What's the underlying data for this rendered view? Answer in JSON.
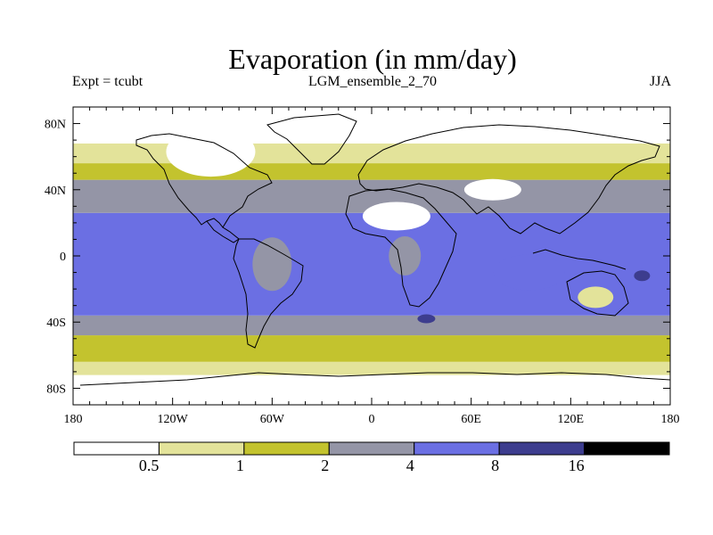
{
  "title": "Evaporation (in mm/day)",
  "experiment": "Expt = tcubt",
  "dataset": "LGM_ensemble_2_70",
  "season": "JJA",
  "lat_labels": [
    "80N",
    "40N",
    "0",
    "40S",
    "80S"
  ],
  "lon_labels": [
    "180",
    "120W",
    "60W",
    "0",
    "60E",
    "120E",
    "180"
  ],
  "colorbar": {
    "thresholds": [
      "0.5",
      "1",
      "2",
      "4",
      "8",
      "16"
    ],
    "colors": [
      "#ffffff",
      "#e3e39a",
      "#c3c32e",
      "#9495a6",
      "#6b6fe3",
      "#3d3d8e",
      "#000000"
    ]
  },
  "chart_data": {
    "type": "heatmap",
    "title": "Evaporation (in mm/day)",
    "variable": "Evaporation",
    "units": "mm/day",
    "season": "JJA",
    "x_range": [
      -180,
      180
    ],
    "y_range": [
      -90,
      90
    ],
    "levels": [
      0.5,
      1,
      2,
      4,
      8,
      16
    ],
    "zones": [
      {
        "name": "south-polar",
        "lat_min": -90,
        "lat_max": -72,
        "class": 0
      },
      {
        "name": "southern-ocean-edge",
        "lat_min": -72,
        "lat_max": -64,
        "class": 1
      },
      {
        "name": "southern-ocean",
        "lat_min": -64,
        "lat_max": -48,
        "class": 2
      },
      {
        "name": "southern-midlatitudes",
        "lat_min": -48,
        "lat_max": -36,
        "class": 3
      },
      {
        "name": "tropics",
        "lat_min": -36,
        "lat_max": 26,
        "class": 4
      },
      {
        "name": "northern-subtropics",
        "lat_min": 26,
        "lat_max": 46,
        "class": 3
      },
      {
        "name": "northern-midlatitudes",
        "lat_min": 46,
        "lat_max": 56,
        "class": 2
      },
      {
        "name": "northern-high",
        "lat_min": 56,
        "lat_max": 68,
        "class": 1
      },
      {
        "name": "arctic",
        "lat_min": 68,
        "lat_max": 90,
        "class": 0
      }
    ],
    "regions": [
      {
        "name": "ice-sheet-north-america",
        "lon": -97,
        "lat": 63,
        "class": 0
      },
      {
        "name": "sahara",
        "lon": 15,
        "lat": 24,
        "class": 0
      },
      {
        "name": "central-asia",
        "lon": 73,
        "lat": 40,
        "class": 0
      },
      {
        "name": "australia-interior",
        "lon": 135,
        "lat": -25,
        "class": 1
      },
      {
        "name": "amazon",
        "lon": -60,
        "lat": -5,
        "class": 3
      },
      {
        "name": "congo",
        "lon": 20,
        "lat": 0,
        "class": 3
      },
      {
        "name": "indian-ocean-east",
        "lon": 95,
        "lat": -10,
        "class": 4
      },
      {
        "name": "agulhas",
        "lon": 33,
        "lat": -38,
        "class": 5
      },
      {
        "name": "coral-sea",
        "lon": 163,
        "lat": -12,
        "class": 5
      }
    ]
  }
}
